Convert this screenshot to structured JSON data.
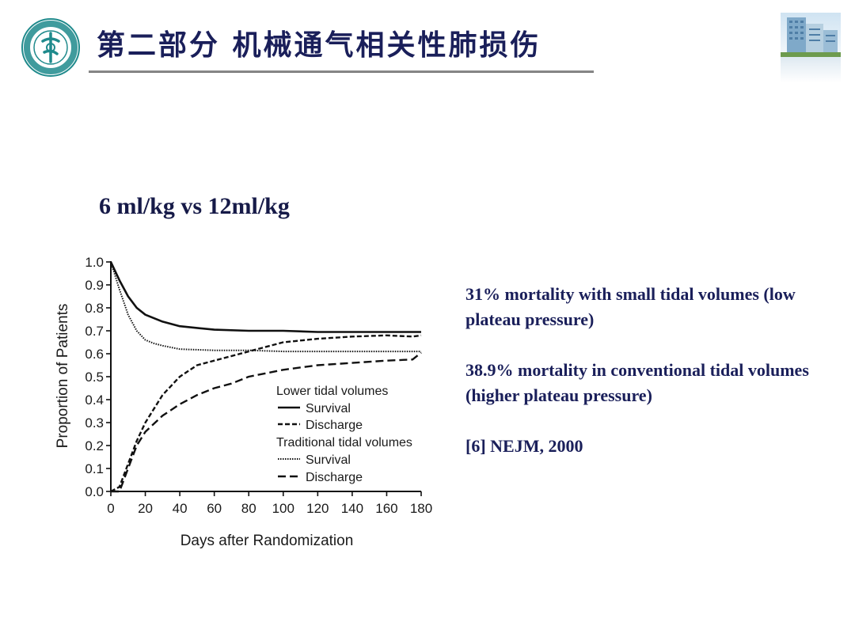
{
  "header": {
    "title": "第二部分 机械通气相关性肺损伤"
  },
  "subtitle": "6 ml/kg vs 12ml/kg",
  "notes": {
    "line1": "31% mortality with small tidal volumes (low plateau pressure)",
    "line2": "38.9% mortality in conventional tidal volumes (higher plateau pressure)",
    "line3": "[6] NEJM, 2000"
  },
  "colors": {
    "title": "#1a1f5a",
    "logo_teal": "#1f8a8c",
    "rule": "#8a8a8a"
  },
  "chart_data": {
    "type": "line",
    "xlabel": "Days after Randomization",
    "ylabel": "Proportion of Patients",
    "xlim": [
      0,
      180
    ],
    "ylim": [
      0,
      1.0
    ],
    "xticks": [
      0,
      20,
      40,
      60,
      80,
      100,
      120,
      140,
      160,
      180
    ],
    "yticks": [
      "0.0",
      "0.1",
      "0.2",
      "0.3",
      "0.4",
      "0.5",
      "0.6",
      "0.7",
      "0.8",
      "0.9",
      "1.0"
    ],
    "grid": false,
    "legend_position": "lower-right",
    "legend": {
      "group1": "Lower tidal volumes",
      "group1_survival": "Survival",
      "group1_discharge": "Discharge",
      "group2": "Traditional tidal volumes",
      "group2_survival": "Survival",
      "group2_discharge": "Discharge"
    },
    "series": [
      {
        "name": "Lower tidal volumes — Survival",
        "style": "solid",
        "x": [
          0,
          5,
          10,
          15,
          20,
          30,
          40,
          60,
          80,
          100,
          120,
          140,
          160,
          180
        ],
        "y": [
          1.0,
          0.92,
          0.85,
          0.8,
          0.77,
          0.74,
          0.72,
          0.705,
          0.7,
          0.7,
          0.695,
          0.695,
          0.695,
          0.695
        ]
      },
      {
        "name": "Lower tidal volumes — Discharge",
        "style": "dashed",
        "x": [
          0,
          5,
          10,
          15,
          20,
          30,
          40,
          50,
          60,
          80,
          100,
          120,
          140,
          160,
          175,
          180
        ],
        "y": [
          0.0,
          0.02,
          0.12,
          0.22,
          0.3,
          0.42,
          0.5,
          0.55,
          0.57,
          0.61,
          0.65,
          0.665,
          0.675,
          0.68,
          0.675,
          0.68
        ]
      },
      {
        "name": "Traditional tidal volumes — Survival",
        "style": "dotted",
        "x": [
          0,
          5,
          10,
          15,
          20,
          25,
          30,
          40,
          60,
          80,
          100,
          120,
          140,
          160,
          180
        ],
        "y": [
          1.0,
          0.88,
          0.77,
          0.7,
          0.66,
          0.645,
          0.635,
          0.62,
          0.615,
          0.615,
          0.61,
          0.61,
          0.61,
          0.61,
          0.61
        ]
      },
      {
        "name": "Traditional tidal volumes — Discharge",
        "style": "longdash",
        "x": [
          0,
          5,
          10,
          15,
          20,
          30,
          40,
          50,
          60,
          70,
          80,
          100,
          120,
          140,
          160,
          175,
          180
        ],
        "y": [
          0.0,
          0.0,
          0.1,
          0.2,
          0.26,
          0.33,
          0.38,
          0.42,
          0.45,
          0.47,
          0.5,
          0.53,
          0.55,
          0.56,
          0.57,
          0.575,
          0.605
        ]
      }
    ]
  }
}
